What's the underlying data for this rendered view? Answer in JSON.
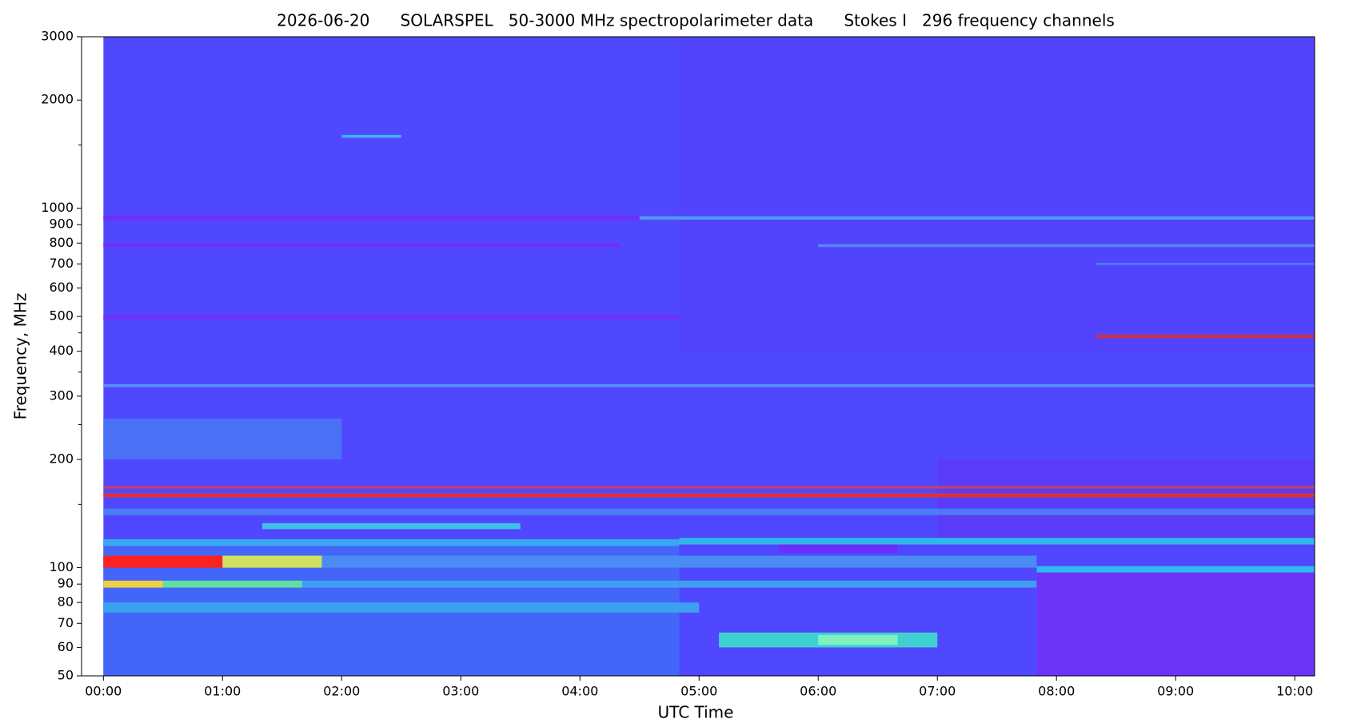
{
  "chart_data": {
    "type": "spectrogram",
    "title": "2026-06-20      SOLARSPEL   50-3000 MHz spectropolarimeter data      Stokes I   296 frequency channels",
    "xlabel": "UTC Time",
    "ylabel": "Frequency, MHz",
    "xlim": [
      -11,
      610
    ],
    "ylim": [
      50,
      3000
    ],
    "ylog": true,
    "xticks": [
      {
        "value": 0,
        "label": "00:00"
      },
      {
        "value": 60,
        "label": "01:00"
      },
      {
        "value": 120,
        "label": "02:00"
      },
      {
        "value": 180,
        "label": "03:00"
      },
      {
        "value": 240,
        "label": "04:00"
      },
      {
        "value": 300,
        "label": "05:00"
      },
      {
        "value": 360,
        "label": "06:00"
      },
      {
        "value": 420,
        "label": "07:00"
      },
      {
        "value": 480,
        "label": "08:00"
      },
      {
        "value": 540,
        "label": "09:00"
      },
      {
        "value": 600,
        "label": "10:00"
      }
    ],
    "yticks": [
      50,
      60,
      70,
      80,
      90,
      100,
      200,
      300,
      400,
      500,
      600,
      700,
      800,
      900,
      1000,
      2000,
      3000
    ],
    "minor_yticks": [
      150,
      250,
      350,
      450,
      1500
    ],
    "data_start": 0,
    "background": "#5048ff",
    "bands": [
      {
        "t": [
          290,
          610
        ],
        "f": [
          400,
          3000
        ],
        "color": "#5244fd"
      },
      {
        "t": [
          0,
          290
        ],
        "f": [
          50,
          120
        ],
        "color": "#4466f8"
      },
      {
        "t": [
          470,
          610
        ],
        "f": [
          50,
          100
        ],
        "color": "#6c34f6"
      },
      {
        "t": [
          420,
          610
        ],
        "f": [
          120,
          200
        ],
        "color": "#5a3cf8"
      },
      {
        "t": [
          0,
          120
        ],
        "f": [
          200,
          260
        ],
        "color": "#4a70f6"
      },
      {
        "t": [
          120,
          150
        ],
        "f": [
          1570,
          1600
        ],
        "color": "#40b0f0"
      },
      {
        "t": [
          0,
          270
        ],
        "f": [
          925,
          955
        ],
        "color": "#6f30f5"
      },
      {
        "t": [
          270,
          610
        ],
        "f": [
          930,
          950
        ],
        "color": "#4f9cf2"
      },
      {
        "t": [
          0,
          260
        ],
        "f": [
          780,
          800
        ],
        "color": "#6e30f5"
      },
      {
        "t": [
          360,
          610
        ],
        "f": [
          780,
          795
        ],
        "color": "#5288f2"
      },
      {
        "t": [
          500,
          610
        ],
        "f": [
          695,
          705
        ],
        "color": "#5078f4"
      },
      {
        "t": [
          0,
          290
        ],
        "f": [
          490,
          505
        ],
        "color": "#6a34f5"
      },
      {
        "t": [
          0,
          610
        ],
        "f": [
          318,
          324
        ],
        "color": "#5a90f5"
      },
      {
        "t": [
          500,
          610
        ],
        "f": [
          435,
          445
        ],
        "color": "#c83050"
      },
      {
        "t": [
          0,
          610
        ],
        "f": [
          166,
          169
        ],
        "color": "#c04070"
      },
      {
        "t": [
          0,
          610
        ],
        "f": [
          157,
          161
        ],
        "color": "#e03030"
      },
      {
        "t": [
          0,
          610
        ],
        "f": [
          140,
          146
        ],
        "color": "#4a7cf4"
      },
      {
        "t": [
          80,
          210
        ],
        "f": [
          128,
          133
        ],
        "color": "#40c0e8"
      },
      {
        "t": [
          0,
          290
        ],
        "f": [
          115,
          120
        ],
        "color": "#3aa8f0"
      },
      {
        "t": [
          290,
          610
        ],
        "f": [
          116,
          121
        ],
        "color": "#2fb8ec"
      },
      {
        "t": [
          340,
          400
        ],
        "f": [
          110,
          116
        ],
        "color": "#6a30f8"
      },
      {
        "t": [
          0,
          470
        ],
        "f": [
          100,
          108
        ],
        "color": "#4a8cf4"
      },
      {
        "t": [
          0,
          60
        ],
        "f": [
          100,
          108
        ],
        "color": "#ff2020"
      },
      {
        "t": [
          60,
          110
        ],
        "f": [
          100,
          108
        ],
        "color": "#d0e060"
      },
      {
        "t": [
          470,
          610
        ],
        "f": [
          97,
          101
        ],
        "color": "#30b8f0"
      },
      {
        "t": [
          0,
          470
        ],
        "f": [
          88,
          92
        ],
        "color": "#40a0f0"
      },
      {
        "t": [
          0,
          30
        ],
        "f": [
          88,
          92
        ],
        "color": "#f0d040"
      },
      {
        "t": [
          30,
          100
        ],
        "f": [
          88,
          92
        ],
        "color": "#60e0a0"
      },
      {
        "t": [
          0,
          300
        ],
        "f": [
          75,
          80
        ],
        "color": "#3aa0f0"
      },
      {
        "t": [
          310,
          420
        ],
        "f": [
          60,
          66
        ],
        "color": "#40d0d0"
      },
      {
        "t": [
          360,
          400
        ],
        "f": [
          61,
          65
        ],
        "color": "#80f0c0"
      }
    ]
  }
}
